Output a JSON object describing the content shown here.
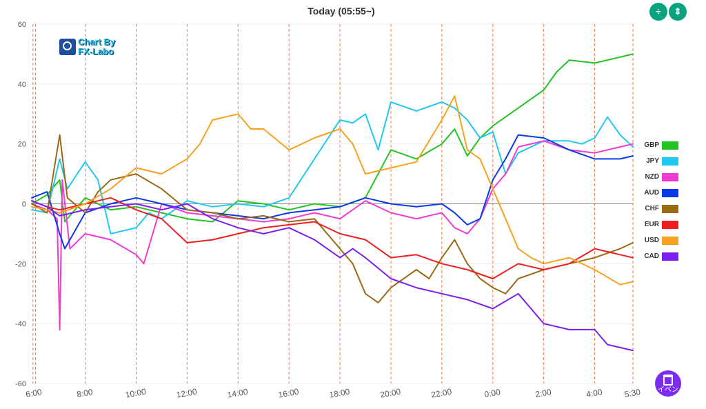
{
  "header": {
    "title": "Today  (05:55~)"
  },
  "buttons": {
    "fit_icon": "÷",
    "expand_icon": "⇕",
    "event_label": "イベン"
  },
  "logo": {
    "line1": "Chart By",
    "line2": "FX-Labo"
  },
  "chart_data": {
    "type": "line",
    "ylim": [
      -60,
      60
    ],
    "y_ticks": [
      60,
      40,
      20,
      0,
      -20,
      -40,
      -60
    ],
    "x_range_hours": [
      5.9,
      29.5
    ],
    "x_ticks": [
      {
        "h": 6.0,
        "label": "6:00"
      },
      {
        "h": 8,
        "label": "8:00"
      },
      {
        "h": 10,
        "label": "10:00"
      },
      {
        "h": 12,
        "label": "12:00"
      },
      {
        "h": 14,
        "label": "14:00"
      },
      {
        "h": 16,
        "label": "16:00"
      },
      {
        "h": 18,
        "label": "18:00"
      },
      {
        "h": 20,
        "label": "20:00"
      },
      {
        "h": 22,
        "label": "22:00"
      },
      {
        "h": 24,
        "label": "0:00"
      },
      {
        "h": 26,
        "label": "2:00"
      },
      {
        "h": 28,
        "label": "4:00"
      },
      {
        "h": 29.5,
        "label": "5:30"
      }
    ],
    "vlines_hours": [
      5.95,
      6.05,
      8,
      10,
      12,
      14,
      16,
      18,
      20,
      22,
      24,
      26,
      28,
      29.5
    ],
    "series": [
      {
        "name": "GBP",
        "color": "#22c422",
        "points": [
          [
            5.9,
            0
          ],
          [
            6.5,
            3
          ],
          [
            7,
            8
          ],
          [
            7.2,
            -6
          ],
          [
            8,
            2
          ],
          [
            9,
            -2
          ],
          [
            10,
            -1
          ],
          [
            11,
            -3
          ],
          [
            12,
            -5
          ],
          [
            13,
            -6
          ],
          [
            14,
            1
          ],
          [
            15,
            0
          ],
          [
            16,
            -2
          ],
          [
            17,
            0
          ],
          [
            18,
            -1
          ],
          [
            19,
            2
          ],
          [
            20,
            18
          ],
          [
            21,
            15
          ],
          [
            22,
            20
          ],
          [
            22.5,
            25
          ],
          [
            23,
            16
          ],
          [
            23.5,
            22
          ],
          [
            24,
            26
          ],
          [
            25,
            32
          ],
          [
            26,
            38
          ],
          [
            26.5,
            44
          ],
          [
            27,
            48
          ],
          [
            28,
            47
          ],
          [
            28.5,
            48
          ],
          [
            29.5,
            50
          ]
        ]
      },
      {
        "name": "JPY",
        "color": "#1ec8f0",
        "points": [
          [
            5.9,
            -2
          ],
          [
            6.5,
            -3
          ],
          [
            7,
            15
          ],
          [
            7.3,
            5
          ],
          [
            8,
            14
          ],
          [
            8.5,
            8
          ],
          [
            9,
            -10
          ],
          [
            10,
            -8
          ],
          [
            10.5,
            -3
          ],
          [
            11,
            -5
          ],
          [
            12,
            1
          ],
          [
            13,
            -1
          ],
          [
            14,
            0
          ],
          [
            15,
            -1
          ],
          [
            16,
            2
          ],
          [
            17,
            15
          ],
          [
            18,
            28
          ],
          [
            18.5,
            27
          ],
          [
            19,
            30
          ],
          [
            19.5,
            18
          ],
          [
            20,
            34
          ],
          [
            21,
            31
          ],
          [
            22,
            34
          ],
          [
            22.5,
            32
          ],
          [
            23,
            28
          ],
          [
            23.5,
            22
          ],
          [
            24,
            24
          ],
          [
            24.5,
            10
          ],
          [
            25,
            17
          ],
          [
            26,
            21
          ],
          [
            27,
            21
          ],
          [
            27.5,
            20
          ],
          [
            28,
            22
          ],
          [
            28.5,
            29
          ],
          [
            29,
            23
          ],
          [
            29.5,
            19
          ]
        ]
      },
      {
        "name": "NZD",
        "color": "#f23ad2",
        "points": [
          [
            5.9,
            0
          ],
          [
            6.5,
            -2
          ],
          [
            6.9,
            -5
          ],
          [
            7,
            -42
          ],
          [
            7.1,
            8
          ],
          [
            7.4,
            -15
          ],
          [
            8,
            -10
          ],
          [
            9,
            -12
          ],
          [
            10,
            -17
          ],
          [
            10.3,
            -20
          ],
          [
            11,
            0
          ],
          [
            12,
            -3
          ],
          [
            13,
            -4
          ],
          [
            14,
            -5
          ],
          [
            15,
            -6
          ],
          [
            16,
            -5
          ],
          [
            17,
            -3
          ],
          [
            18,
            -5
          ],
          [
            19,
            1
          ],
          [
            20,
            -3
          ],
          [
            21,
            -5
          ],
          [
            22,
            -3
          ],
          [
            22.5,
            -8
          ],
          [
            23,
            -10
          ],
          [
            23.5,
            -5
          ],
          [
            24,
            5
          ],
          [
            24.5,
            10
          ],
          [
            25,
            19
          ],
          [
            26,
            21
          ],
          [
            27,
            18
          ],
          [
            28,
            17
          ],
          [
            28.5,
            18
          ],
          [
            29,
            19
          ],
          [
            29.5,
            20
          ]
        ]
      },
      {
        "name": "AUD",
        "color": "#0a3ae8",
        "points": [
          [
            5.9,
            2
          ],
          [
            6.5,
            4
          ],
          [
            7,
            -10
          ],
          [
            7.2,
            -15
          ],
          [
            8,
            -3
          ],
          [
            9,
            0
          ],
          [
            10,
            2
          ],
          [
            11,
            0
          ],
          [
            12,
            -2
          ],
          [
            13,
            -3
          ],
          [
            14,
            -4
          ],
          [
            15,
            -5
          ],
          [
            16,
            -3
          ],
          [
            17,
            -2
          ],
          [
            18,
            -1
          ],
          [
            19,
            2
          ],
          [
            20,
            0
          ],
          [
            21,
            -1
          ],
          [
            22,
            0
          ],
          [
            22.5,
            -3
          ],
          [
            23,
            -7
          ],
          [
            23.5,
            -5
          ],
          [
            24,
            8
          ],
          [
            24.5,
            15
          ],
          [
            25,
            23
          ],
          [
            26,
            22
          ],
          [
            27,
            18
          ],
          [
            28,
            15
          ],
          [
            29,
            15
          ],
          [
            29.5,
            16
          ]
        ]
      },
      {
        "name": "CHF",
        "color": "#9a6a12",
        "points": [
          [
            5.9,
            0
          ],
          [
            6.5,
            -3
          ],
          [
            7,
            23
          ],
          [
            7.3,
            2
          ],
          [
            8,
            -3
          ],
          [
            8.5,
            4
          ],
          [
            9,
            8
          ],
          [
            10,
            10
          ],
          [
            11,
            5
          ],
          [
            12,
            -2
          ],
          [
            13,
            -3
          ],
          [
            14,
            -5
          ],
          [
            15,
            -4
          ],
          [
            16,
            -6
          ],
          [
            17,
            -5
          ],
          [
            18,
            -15
          ],
          [
            18.5,
            -20
          ],
          [
            19,
            -30
          ],
          [
            19.5,
            -33
          ],
          [
            20,
            -28
          ],
          [
            21,
            -22
          ],
          [
            21.5,
            -25
          ],
          [
            22,
            -18
          ],
          [
            22.5,
            -12
          ],
          [
            23,
            -20
          ],
          [
            23.5,
            -25
          ],
          [
            24,
            -28
          ],
          [
            24.5,
            -30
          ],
          [
            25,
            -25
          ],
          [
            26,
            -22
          ],
          [
            27,
            -20
          ],
          [
            28,
            -18
          ],
          [
            29,
            -15
          ],
          [
            29.5,
            -13
          ]
        ]
      },
      {
        "name": "EUR",
        "color": "#f01e1e",
        "points": [
          [
            5.9,
            1
          ],
          [
            6.5,
            -1
          ],
          [
            7,
            -2
          ],
          [
            8,
            0
          ],
          [
            9,
            2
          ],
          [
            10,
            -2
          ],
          [
            11,
            -5
          ],
          [
            12,
            -13
          ],
          [
            13,
            -12
          ],
          [
            14,
            -10
          ],
          [
            15,
            -8
          ],
          [
            16,
            -7
          ],
          [
            17,
            -6
          ],
          [
            18,
            -10
          ],
          [
            19,
            -12
          ],
          [
            20,
            -18
          ],
          [
            21,
            -17
          ],
          [
            22,
            -20
          ],
          [
            23,
            -22
          ],
          [
            24,
            -25
          ],
          [
            25,
            -20
          ],
          [
            26,
            -22
          ],
          [
            27,
            -20
          ],
          [
            28,
            -15
          ],
          [
            29,
            -17
          ],
          [
            29.5,
            -18
          ]
        ]
      },
      {
        "name": "USD",
        "color": "#f7a11f",
        "points": [
          [
            5.9,
            -1
          ],
          [
            6.5,
            -2
          ],
          [
            7,
            -3
          ],
          [
            8,
            0
          ],
          [
            9,
            5
          ],
          [
            10,
            12
          ],
          [
            11,
            10
          ],
          [
            12,
            15
          ],
          [
            12.5,
            20
          ],
          [
            13,
            28
          ],
          [
            14,
            30
          ],
          [
            14.5,
            25
          ],
          [
            15,
            25
          ],
          [
            16,
            18
          ],
          [
            17,
            22
          ],
          [
            18,
            25
          ],
          [
            18.5,
            20
          ],
          [
            19,
            10
          ],
          [
            20,
            12
          ],
          [
            21,
            14
          ],
          [
            22,
            28
          ],
          [
            22.5,
            36
          ],
          [
            23,
            18
          ],
          [
            23.5,
            15
          ],
          [
            24,
            5
          ],
          [
            24.5,
            -5
          ],
          [
            25,
            -15
          ],
          [
            25.5,
            -18
          ],
          [
            26,
            -20
          ],
          [
            27,
            -18
          ],
          [
            28,
            -22
          ],
          [
            29,
            -27
          ],
          [
            29.5,
            -26
          ]
        ]
      },
      {
        "name": "CAD",
        "color": "#7b1ff0",
        "points": [
          [
            5.9,
            1
          ],
          [
            6.5,
            -1
          ],
          [
            7,
            -4
          ],
          [
            8,
            -2
          ],
          [
            9,
            -1
          ],
          [
            10,
            0
          ],
          [
            11,
            -2
          ],
          [
            12,
            0
          ],
          [
            13,
            -5
          ],
          [
            14,
            -8
          ],
          [
            15,
            -10
          ],
          [
            16,
            -8
          ],
          [
            17,
            -12
          ],
          [
            18,
            -18
          ],
          [
            18.5,
            -15
          ],
          [
            19,
            -18
          ],
          [
            20,
            -25
          ],
          [
            21,
            -28
          ],
          [
            22,
            -30
          ],
          [
            23,
            -32
          ],
          [
            24,
            -35
          ],
          [
            25,
            -30
          ],
          [
            26,
            -40
          ],
          [
            27,
            -42
          ],
          [
            28,
            -42
          ],
          [
            28.5,
            -47
          ],
          [
            29,
            -48
          ],
          [
            29.5,
            -49
          ]
        ]
      }
    ]
  }
}
